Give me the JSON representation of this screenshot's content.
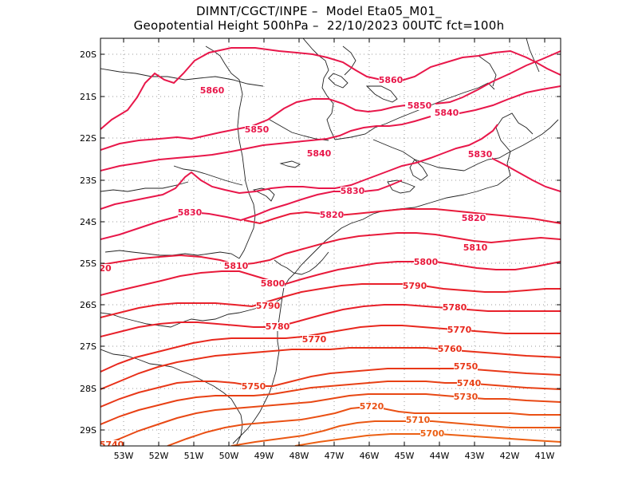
{
  "header": {
    "line1": "DIMNT/CGCT/INPE –  Model Eta05_M01_",
    "line2": "Geopotential Height 500hPa –  22/10/2023 00UTC fct=100h"
  },
  "axes": {
    "lat_labels": [
      "20S",
      "21S",
      "22S",
      "23S",
      "24S",
      "25S",
      "26S",
      "27S",
      "28S",
      "29S"
    ],
    "lon_labels": [
      "53W",
      "52W",
      "51W",
      "50W",
      "49W",
      "48W",
      "47W",
      "46W",
      "45W",
      "44W",
      "43W",
      "42W",
      "41W"
    ],
    "grid": "dotted"
  },
  "contour_labels": [
    {
      "text": "5860",
      "color": "#e8174a"
    },
    {
      "text": "5860",
      "color": "#e8174a"
    },
    {
      "text": "5850",
      "color": "#e8174a"
    },
    {
      "text": "5850",
      "color": "#e8174a"
    },
    {
      "text": "5840",
      "color": "#e8174a"
    },
    {
      "text": "5840",
      "color": "#e8174a"
    },
    {
      "text": "5830",
      "color": "#e8174a"
    },
    {
      "text": "5830",
      "color": "#e8174a"
    },
    {
      "text": "5830",
      "color": "#e8174a"
    },
    {
      "text": "5820",
      "color": "#e8174a"
    },
    {
      "text": "5820",
      "color": "#e8174a"
    },
    {
      "text": "5810",
      "color": "#e81a3a"
    },
    {
      "text": "5810",
      "color": "#e81a3a"
    },
    {
      "text": "5800",
      "color": "#e81a3a"
    },
    {
      "text": "5800",
      "color": "#e81a3a"
    },
    {
      "text": "5790",
      "color": "#e8202a"
    },
    {
      "text": "5790",
      "color": "#e8202a"
    },
    {
      "text": "5780",
      "color": "#e8202a"
    },
    {
      "text": "5780",
      "color": "#e8202a"
    },
    {
      "text": "5770",
      "color": "#e8281e"
    },
    {
      "text": "5770",
      "color": "#e8281e"
    },
    {
      "text": "5760",
      "color": "#e83018"
    },
    {
      "text": "5750",
      "color": "#e83818"
    },
    {
      "text": "5750",
      "color": "#e83818"
    },
    {
      "text": "5740",
      "color": "#e84014"
    },
    {
      "text": "5730",
      "color": "#e84814"
    },
    {
      "text": "5720",
      "color": "#ea5014"
    },
    {
      "text": "5710",
      "color": "#ea5814"
    },
    {
      "text": "5700",
      "color": "#ec6014"
    },
    {
      "text": "20",
      "color": "#e81a3a"
    },
    {
      "text": "5740",
      "color": "#e84014"
    }
  ]
}
